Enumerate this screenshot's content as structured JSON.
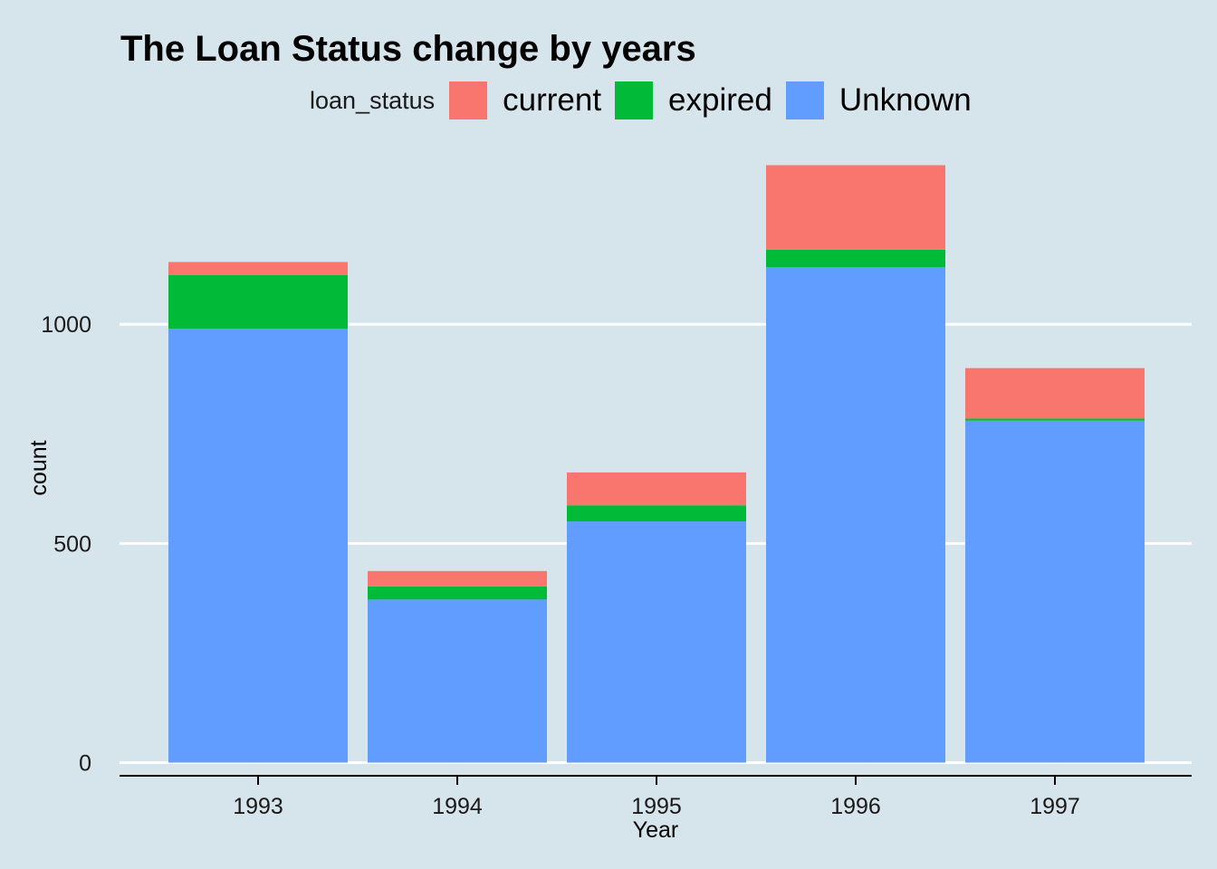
{
  "chart_data": {
    "type": "bar",
    "stacked": true,
    "title": "The Loan Status change by years",
    "xlabel": "Year",
    "ylabel": "count",
    "categories": [
      "1993",
      "1994",
      "1995",
      "1996",
      "1997"
    ],
    "series": [
      {
        "name": "Unknown",
        "color": "#619cff",
        "values": [
          990,
          372,
          550,
          1130,
          780
        ]
      },
      {
        "name": "expired",
        "color": "#00ba38",
        "values": [
          122,
          30,
          37,
          40,
          5
        ]
      },
      {
        "name": "current",
        "color": "#f8766d",
        "values": [
          30,
          35,
          75,
          193,
          115
        ]
      }
    ],
    "ylim": [
      -30,
      1430
    ],
    "yticks": [
      0,
      500,
      1000
    ],
    "ytick_labels": [
      "0",
      "500",
      "1000"
    ],
    "grid": "horizontal",
    "background_color": "#d6e4eb",
    "grid_color": "#ffffff",
    "legend": {
      "title": "loan_status",
      "position": "top",
      "entries": [
        {
          "label": "current",
          "color": "#f8766d"
        },
        {
          "label": "expired",
          "color": "#00ba38"
        },
        {
          "label": "Unknown",
          "color": "#619cff"
        }
      ]
    }
  }
}
